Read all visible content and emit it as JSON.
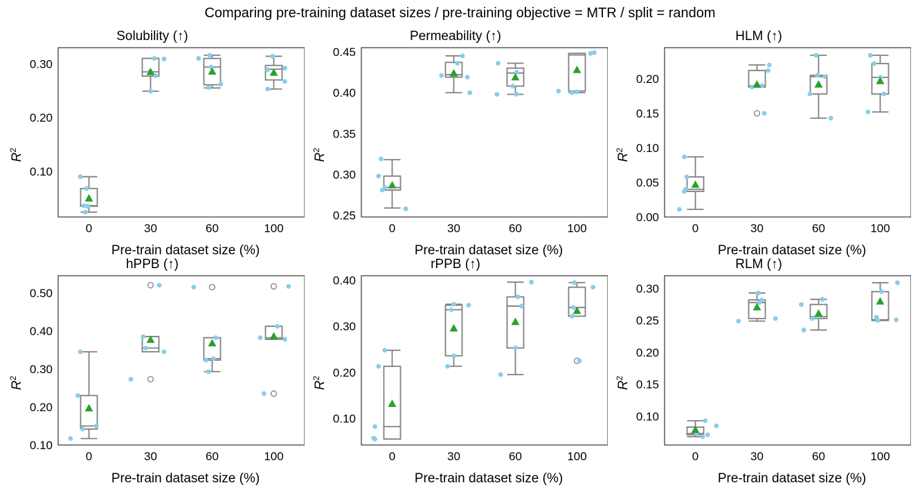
{
  "suptitle": "Comparing pre-training dataset sizes / pre-training objective =  MTR / split = random",
  "colors": {
    "box": "#808080",
    "point": "#87ceeb",
    "mean": "#2ca02c",
    "flier": "#808080"
  },
  "chart_data": [
    {
      "type": "box",
      "title": "Solubility (↑)",
      "xlabel": "Pre-train dataset size (%)",
      "ylabel": "R",
      "ylabel_sup": "2",
      "categories": [
        "0",
        "30",
        "60",
        "100"
      ],
      "ylim": [
        0.015,
        0.33
      ],
      "yticks": [
        0.1,
        0.2,
        0.3
      ],
      "ytick_labels": [
        "0.10",
        "0.20",
        "0.30"
      ],
      "boxes": [
        {
          "q1": 0.035,
          "median": 0.036,
          "q3": 0.068,
          "whislo": 0.024,
          "whishi": 0.09,
          "mean": 0.05,
          "fliers": []
        },
        {
          "q1": 0.277,
          "median": 0.285,
          "q3": 0.31,
          "whislo": 0.249,
          "whishi": 0.31,
          "mean": 0.285,
          "fliers": []
        },
        {
          "q1": 0.261,
          "median": 0.294,
          "q3": 0.31,
          "whislo": 0.255,
          "whishi": 0.316,
          "mean": 0.286,
          "fliers": []
        },
        {
          "q1": 0.27,
          "median": 0.29,
          "q3": 0.297,
          "whislo": 0.253,
          "whishi": 0.314,
          "mean": 0.284,
          "fliers": []
        }
      ],
      "points": [
        {
          "cat": 0,
          "offset": -0.14,
          "y": 0.09
        },
        {
          "cat": 0,
          "offset": -0.04,
          "y": 0.068
        },
        {
          "cat": 0,
          "offset": -0.08,
          "y": 0.036
        },
        {
          "cat": 0,
          "offset": -0.02,
          "y": 0.035
        },
        {
          "cat": 0,
          "offset": -0.06,
          "y": 0.024
        },
        {
          "cat": 1,
          "offset": 0.06,
          "y": 0.31
        },
        {
          "cat": 1,
          "offset": 0.22,
          "y": 0.309
        },
        {
          "cat": 1,
          "offset": -0.02,
          "y": 0.285
        },
        {
          "cat": 1,
          "offset": 0.08,
          "y": 0.278
        },
        {
          "cat": 1,
          "offset": 0.0,
          "y": 0.249
        },
        {
          "cat": 2,
          "offset": -0.22,
          "y": 0.31
        },
        {
          "cat": 2,
          "offset": -0.04,
          "y": 0.316
        },
        {
          "cat": 2,
          "offset": -0.02,
          "y": 0.294
        },
        {
          "cat": 2,
          "offset": 0.14,
          "y": 0.262
        },
        {
          "cat": 2,
          "offset": -0.06,
          "y": 0.256
        },
        {
          "cat": 3,
          "offset": -0.02,
          "y": 0.314
        },
        {
          "cat": 3,
          "offset": -0.1,
          "y": 0.289
        },
        {
          "cat": 3,
          "offset": 0.18,
          "y": 0.292
        },
        {
          "cat": 3,
          "offset": 0.18,
          "y": 0.267
        },
        {
          "cat": 3,
          "offset": -0.1,
          "y": 0.253
        }
      ]
    },
    {
      "type": "box",
      "title": "Permeability (↑)",
      "xlabel": "Pre-train dataset size (%)",
      "ylabel": "R",
      "ylabel_sup": "2",
      "categories": [
        "0",
        "30",
        "60",
        "100"
      ],
      "ylim": [
        0.248,
        0.455
      ],
      "yticks": [
        0.25,
        0.3,
        0.35,
        0.4,
        0.45
      ],
      "ytick_labels": [
        "0.25",
        "0.30",
        "0.35",
        "0.40",
        "0.45"
      ],
      "boxes": [
        {
          "q1": 0.281,
          "median": 0.284,
          "q3": 0.298,
          "whislo": 0.259,
          "whishi": 0.318,
          "mean": 0.287,
          "fliers": []
        },
        {
          "q1": 0.419,
          "median": 0.422,
          "q3": 0.437,
          "whislo": 0.4,
          "whishi": 0.445,
          "mean": 0.424,
          "fliers": []
        },
        {
          "q1": 0.408,
          "median": 0.424,
          "q3": 0.43,
          "whislo": 0.398,
          "whishi": 0.436,
          "mean": 0.419,
          "fliers": []
        },
        {
          "q1": 0.402,
          "median": 0.446,
          "q3": 0.448,
          "whislo": 0.4,
          "whishi": 0.448,
          "mean": 0.428,
          "fliers": []
        }
      ],
      "points": [
        {
          "cat": 0,
          "offset": -0.18,
          "y": 0.319
        },
        {
          "cat": 0,
          "offset": -0.22,
          "y": 0.298
        },
        {
          "cat": 0,
          "offset": -0.12,
          "y": 0.284
        },
        {
          "cat": 0,
          "offset": -0.16,
          "y": 0.281
        },
        {
          "cat": 0,
          "offset": 0.22,
          "y": 0.258
        },
        {
          "cat": 1,
          "offset": 0.14,
          "y": 0.445
        },
        {
          "cat": 1,
          "offset": 0.06,
          "y": 0.436
        },
        {
          "cat": 1,
          "offset": -0.2,
          "y": 0.421
        },
        {
          "cat": 1,
          "offset": 0.22,
          "y": 0.419
        },
        {
          "cat": 1,
          "offset": 0.26,
          "y": 0.4
        },
        {
          "cat": 2,
          "offset": -0.28,
          "y": 0.436
        },
        {
          "cat": 2,
          "offset": 0.02,
          "y": 0.425
        },
        {
          "cat": 2,
          "offset": -0.04,
          "y": 0.408
        },
        {
          "cat": 2,
          "offset": 0.02,
          "y": 0.398
        },
        {
          "cat": 2,
          "offset": -0.3,
          "y": 0.398
        },
        {
          "cat": 3,
          "offset": 0.28,
          "y": 0.449
        },
        {
          "cat": 3,
          "offset": 0.22,
          "y": 0.448
        },
        {
          "cat": 3,
          "offset": -0.3,
          "y": 0.402
        },
        {
          "cat": 3,
          "offset": -0.08,
          "y": 0.4
        },
        {
          "cat": 3,
          "offset": 0.0,
          "y": 0.401
        }
      ]
    },
    {
      "type": "box",
      "title": "HLM (↑)",
      "xlabel": "Pre-train dataset size (%)",
      "ylabel": "R",
      "ylabel_sup": "2",
      "categories": [
        "0",
        "30",
        "60",
        "100"
      ],
      "ylim": [
        0.0,
        0.245
      ],
      "yticks": [
        0.0,
        0.05,
        0.1,
        0.15,
        0.2
      ],
      "ytick_labels": [
        "0.00",
        "0.05",
        "0.10",
        "0.15",
        "0.20"
      ],
      "boxes": [
        {
          "q1": 0.037,
          "median": 0.04,
          "q3": 0.058,
          "whislo": 0.011,
          "whishi": 0.087,
          "mean": 0.047,
          "fliers": []
        },
        {
          "q1": 0.188,
          "median": 0.19,
          "q3": 0.212,
          "whislo": 0.188,
          "whishi": 0.22,
          "mean": 0.192,
          "fliers": [
            0.15
          ]
        },
        {
          "q1": 0.178,
          "median": 0.203,
          "q3": 0.205,
          "whislo": 0.143,
          "whishi": 0.234,
          "mean": 0.192,
          "fliers": []
        },
        {
          "q1": 0.178,
          "median": 0.202,
          "q3": 0.222,
          "whislo": 0.152,
          "whishi": 0.234,
          "mean": 0.197,
          "fliers": []
        }
      ],
      "points": [
        {
          "cat": 0,
          "offset": -0.18,
          "y": 0.087
        },
        {
          "cat": 0,
          "offset": -0.14,
          "y": 0.058
        },
        {
          "cat": 0,
          "offset": -0.18,
          "y": 0.037
        },
        {
          "cat": 0,
          "offset": -0.16,
          "y": 0.04
        },
        {
          "cat": 0,
          "offset": -0.26,
          "y": 0.011
        },
        {
          "cat": 1,
          "offset": 0.2,
          "y": 0.22
        },
        {
          "cat": 1,
          "offset": 0.18,
          "y": 0.212
        },
        {
          "cat": 1,
          "offset": -0.08,
          "y": 0.188
        },
        {
          "cat": 1,
          "offset": 0.08,
          "y": 0.19
        },
        {
          "cat": 1,
          "offset": 0.12,
          "y": 0.15
        },
        {
          "cat": 2,
          "offset": -0.04,
          "y": 0.234
        },
        {
          "cat": 2,
          "offset": 0.1,
          "y": 0.203
        },
        {
          "cat": 2,
          "offset": -0.02,
          "y": 0.205
        },
        {
          "cat": 2,
          "offset": -0.14,
          "y": 0.178
        },
        {
          "cat": 2,
          "offset": 0.2,
          "y": 0.143
        },
        {
          "cat": 3,
          "offset": -0.16,
          "y": 0.234
        },
        {
          "cat": 3,
          "offset": -0.1,
          "y": 0.222
        },
        {
          "cat": 3,
          "offset": 0.0,
          "y": 0.202
        },
        {
          "cat": 3,
          "offset": 0.06,
          "y": 0.178
        },
        {
          "cat": 3,
          "offset": -0.2,
          "y": 0.152
        }
      ]
    },
    {
      "type": "box",
      "title": "hPPB (↑)",
      "xlabel": "Pre-train dataset size (%)",
      "ylabel": "R",
      "ylabel_sup": "2",
      "categories": [
        "0",
        "30",
        "60",
        "100"
      ],
      "ylim": [
        0.1,
        0.545
      ],
      "yticks": [
        0.1,
        0.2,
        0.3,
        0.4,
        0.5
      ],
      "ytick_labels": [
        "0.10",
        "0.20",
        "0.30",
        "0.40",
        "0.50"
      ],
      "boxes": [
        {
          "q1": 0.142,
          "median": 0.15,
          "q3": 0.23,
          "whislo": 0.117,
          "whishi": 0.345,
          "mean": 0.197,
          "fliers": []
        },
        {
          "q1": 0.345,
          "median": 0.355,
          "q3": 0.385,
          "whislo": 0.345,
          "whishi": 0.385,
          "mean": 0.377,
          "fliers": [
            0.52,
            0.273
          ]
        },
        {
          "q1": 0.323,
          "median": 0.327,
          "q3": 0.382,
          "whislo": 0.293,
          "whishi": 0.382,
          "mean": 0.368,
          "fliers": [
            0.515
          ]
        },
        {
          "q1": 0.378,
          "median": 0.382,
          "q3": 0.412,
          "whislo": 0.378,
          "whishi": 0.412,
          "mean": 0.386,
          "fliers": [
            0.517,
            0.235
          ]
        }
      ],
      "points": [
        {
          "cat": 0,
          "offset": -0.14,
          "y": 0.345
        },
        {
          "cat": 0,
          "offset": -0.18,
          "y": 0.23
        },
        {
          "cat": 0,
          "offset": 0.12,
          "y": 0.15
        },
        {
          "cat": 0,
          "offset": -0.1,
          "y": 0.142
        },
        {
          "cat": 0,
          "offset": -0.3,
          "y": 0.117
        },
        {
          "cat": 1,
          "offset": 0.14,
          "y": 0.52
        },
        {
          "cat": 1,
          "offset": -0.12,
          "y": 0.385
        },
        {
          "cat": 1,
          "offset": -0.08,
          "y": 0.355
        },
        {
          "cat": 1,
          "offset": 0.22,
          "y": 0.345
        },
        {
          "cat": 1,
          "offset": -0.32,
          "y": 0.273
        },
        {
          "cat": 2,
          "offset": -0.3,
          "y": 0.515
        },
        {
          "cat": 2,
          "offset": 0.06,
          "y": 0.382
        },
        {
          "cat": 2,
          "offset": 0.02,
          "y": 0.327
        },
        {
          "cat": 2,
          "offset": -0.1,
          "y": 0.323
        },
        {
          "cat": 2,
          "offset": -0.06,
          "y": 0.293
        },
        {
          "cat": 3,
          "offset": 0.24,
          "y": 0.517
        },
        {
          "cat": 3,
          "offset": 0.06,
          "y": 0.412
        },
        {
          "cat": 3,
          "offset": -0.22,
          "y": 0.382
        },
        {
          "cat": 3,
          "offset": 0.18,
          "y": 0.378
        },
        {
          "cat": 3,
          "offset": -0.16,
          "y": 0.235
        }
      ]
    },
    {
      "type": "box",
      "title": "rPPB (↑)",
      "xlabel": "Pre-train dataset size (%)",
      "ylabel": "R",
      "ylabel_sup": "2",
      "categories": [
        "0",
        "30",
        "60",
        "100"
      ],
      "ylim": [
        0.042,
        0.41
      ],
      "yticks": [
        0.1,
        0.2,
        0.3,
        0.4
      ],
      "ytick_labels": [
        "0.10",
        "0.20",
        "0.30",
        "0.40"
      ],
      "boxes": [
        {
          "q1": 0.055,
          "median": 0.082,
          "q3": 0.213,
          "whislo": 0.055,
          "whishi": 0.248,
          "mean": 0.132,
          "fliers": []
        },
        {
          "q1": 0.236,
          "median": 0.336,
          "q3": 0.346,
          "whislo": 0.213,
          "whishi": 0.348,
          "mean": 0.296,
          "fliers": []
        },
        {
          "q1": 0.253,
          "median": 0.344,
          "q3": 0.364,
          "whislo": 0.195,
          "whishi": 0.396,
          "mean": 0.31,
          "fliers": []
        },
        {
          "q1": 0.322,
          "median": 0.341,
          "q3": 0.385,
          "whislo": 0.322,
          "whishi": 0.395,
          "mean": 0.334,
          "fliers": [
            0.225
          ]
        }
      ],
      "points": [
        {
          "cat": 0,
          "offset": -0.12,
          "y": 0.248
        },
        {
          "cat": 0,
          "offset": -0.22,
          "y": 0.213
        },
        {
          "cat": 0,
          "offset": -0.28,
          "y": 0.082
        },
        {
          "cat": 0,
          "offset": -0.3,
          "y": 0.057
        },
        {
          "cat": 0,
          "offset": -0.28,
          "y": 0.055
        },
        {
          "cat": 1,
          "offset": 0.0,
          "y": 0.348
        },
        {
          "cat": 1,
          "offset": 0.24,
          "y": 0.346
        },
        {
          "cat": 1,
          "offset": -0.04,
          "y": 0.336
        },
        {
          "cat": 1,
          "offset": 0.0,
          "y": 0.236
        },
        {
          "cat": 1,
          "offset": -0.1,
          "y": 0.213
        },
        {
          "cat": 2,
          "offset": 0.26,
          "y": 0.396
        },
        {
          "cat": 2,
          "offset": 0.04,
          "y": 0.364
        },
        {
          "cat": 2,
          "offset": 0.1,
          "y": 0.344
        },
        {
          "cat": 2,
          "offset": 0.0,
          "y": 0.253
        },
        {
          "cat": 2,
          "offset": -0.24,
          "y": 0.195
        },
        {
          "cat": 3,
          "offset": -0.04,
          "y": 0.395
        },
        {
          "cat": 3,
          "offset": 0.26,
          "y": 0.385
        },
        {
          "cat": 3,
          "offset": -0.06,
          "y": 0.341
        },
        {
          "cat": 3,
          "offset": -0.08,
          "y": 0.322
        },
        {
          "cat": 3,
          "offset": 0.04,
          "y": 0.225
        }
      ]
    },
    {
      "type": "box",
      "title": "RLM (↑)",
      "xlabel": "Pre-train dataset size (%)",
      "ylabel": "R",
      "ylabel_sup": "2",
      "categories": [
        "0",
        "30",
        "60",
        "100"
      ],
      "ylim": [
        0.055,
        0.32
      ],
      "yticks": [
        0.1,
        0.15,
        0.2,
        0.25,
        0.3
      ],
      "ytick_labels": [
        "0.10",
        "0.15",
        "0.20",
        "0.25",
        "0.30"
      ],
      "boxes": [
        {
          "q1": 0.071,
          "median": 0.073,
          "q3": 0.083,
          "whislo": 0.068,
          "whishi": 0.093,
          "mean": 0.079,
          "fliers": []
        },
        {
          "q1": 0.253,
          "median": 0.278,
          "q3": 0.282,
          "whislo": 0.249,
          "whishi": 0.293,
          "mean": 0.271,
          "fliers": []
        },
        {
          "q1": 0.253,
          "median": 0.256,
          "q3": 0.275,
          "whislo": 0.235,
          "whishi": 0.283,
          "mean": 0.261,
          "fliers": []
        },
        {
          "q1": 0.25,
          "median": 0.251,
          "q3": 0.295,
          "whislo": 0.25,
          "whishi": 0.309,
          "mean": 0.28,
          "fliers": []
        }
      ],
      "points": [
        {
          "cat": 0,
          "offset": 0.16,
          "y": 0.093
        },
        {
          "cat": 0,
          "offset": 0.34,
          "y": 0.085
        },
        {
          "cat": 0,
          "offset": 0.02,
          "y": 0.073
        },
        {
          "cat": 0,
          "offset": 0.2,
          "y": 0.071
        },
        {
          "cat": 0,
          "offset": 0.12,
          "y": 0.068
        },
        {
          "cat": 1,
          "offset": 0.02,
          "y": 0.293
        },
        {
          "cat": 1,
          "offset": 0.08,
          "y": 0.282
        },
        {
          "cat": 1,
          "offset": 0.04,
          "y": 0.278
        },
        {
          "cat": 1,
          "offset": 0.3,
          "y": 0.253
        },
        {
          "cat": 1,
          "offset": -0.3,
          "y": 0.249
        },
        {
          "cat": 2,
          "offset": 0.06,
          "y": 0.283
        },
        {
          "cat": 2,
          "offset": -0.28,
          "y": 0.275
        },
        {
          "cat": 2,
          "offset": 0.0,
          "y": 0.256
        },
        {
          "cat": 2,
          "offset": -0.1,
          "y": 0.253
        },
        {
          "cat": 2,
          "offset": -0.24,
          "y": 0.235
        },
        {
          "cat": 3,
          "offset": 0.28,
          "y": 0.309
        },
        {
          "cat": 3,
          "offset": 0.02,
          "y": 0.295
        },
        {
          "cat": 3,
          "offset": 0.26,
          "y": 0.251
        },
        {
          "cat": 3,
          "offset": -0.04,
          "y": 0.25
        },
        {
          "cat": 3,
          "offset": -0.06,
          "y": 0.255
        }
      ]
    }
  ]
}
